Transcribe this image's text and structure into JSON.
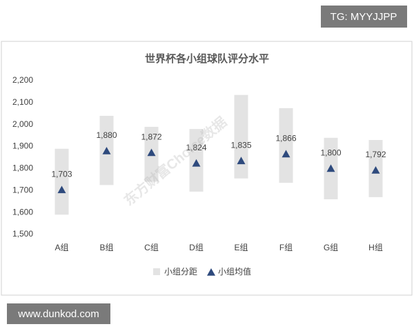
{
  "chart_data": {
    "type": "range-bar",
    "title": "世界杯各小组球队评分水平",
    "categories": [
      "A组",
      "B组",
      "C组",
      "D组",
      "E组",
      "F组",
      "G组",
      "H组"
    ],
    "series": [
      {
        "name": "小组分距",
        "color": "#e3e3e3",
        "low": [
          1590,
          1725,
          1740,
          1695,
          1755,
          1735,
          1660,
          1670
        ],
        "high": [
          1890,
          2040,
          1990,
          1980,
          2135,
          2075,
          1940,
          1930
        ]
      },
      {
        "name": "小组均值",
        "color": "#2e4a7d",
        "values": [
          1703,
          1880,
          1872,
          1824,
          1835,
          1866,
          1800,
          1792
        ],
        "value_labels": [
          "1,703",
          "1,880",
          "1,872",
          "1,824",
          "1,835",
          "1,866",
          "1,800",
          "1,792"
        ]
      }
    ],
    "ylim": [
      1500,
      2200
    ],
    "yticks": [
      {
        "value": 1500,
        "label": "1,500"
      },
      {
        "value": 1600,
        "label": "1,600"
      },
      {
        "value": 1700,
        "label": "1,700"
      },
      {
        "value": 1800,
        "label": "1,800"
      },
      {
        "value": 1900,
        "label": "1,900"
      },
      {
        "value": 2000,
        "label": "2,000"
      },
      {
        "value": 2100,
        "label": "2,100"
      },
      {
        "value": 2200,
        "label": "2,200"
      }
    ],
    "watermark": "东方财富Choice数据"
  },
  "overlays": {
    "top_right": "TG: MYYJJPP",
    "bottom_left": "www.dunkod.com"
  }
}
